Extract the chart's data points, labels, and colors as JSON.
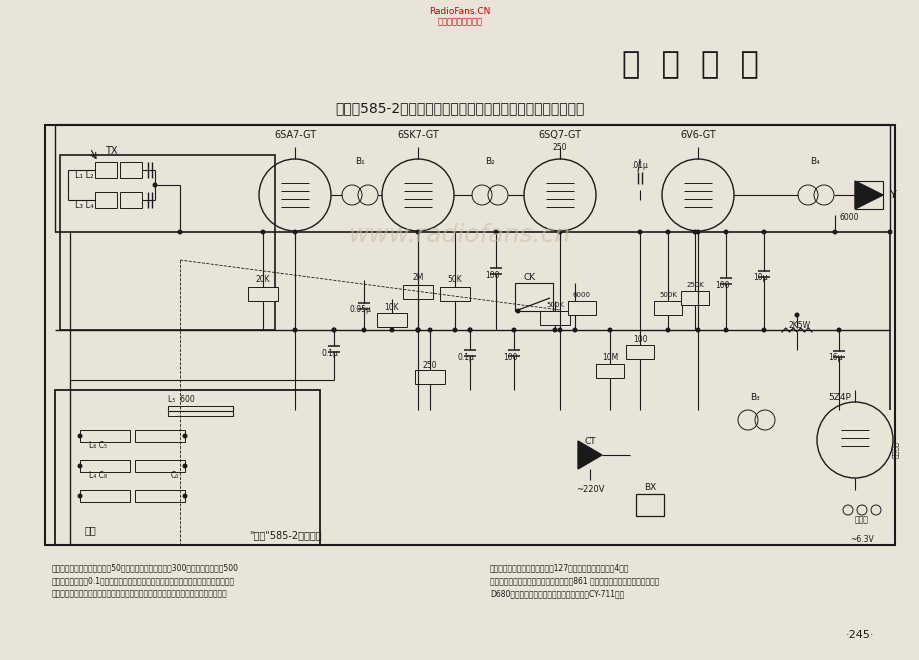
{
  "bg_color": "#e8e4d8",
  "title_main": "安  徽  产  品",
  "title_sub": "黄山牌585-2型交流五管二波段（原安徽合肥广播器材厂产品）",
  "watermark": "www.radiofans.cn",
  "site_top1": "RadioFans.CN",
  "site_top2": "收音机爱好者资料库",
  "tube_labels": [
    "6SA7-GT",
    "6SK7-GT",
    "6SQ7-GT",
    "6V6-GT"
  ],
  "page_num": "·245·",
  "sub_label": "\"黄山\"585-2甲五－二",
  "power_label": "双连",
  "tx_label": "TX",
  "ct_label": "CT",
  "ac_label": "~220V",
  "bx_label": "BX",
  "y_label": "Y",
  "ck_label": "CK",
  "tube5_label": "5Z4P",
  "note_line1": "【说明】本机电力消耗，小于50瓦，灵敏度：申波不低于300微伏，粗波不低于500",
  "note_line2": "微伏，细套不多于0.1倍；装备及使用说明，控制旋钮，左：电源开关及音量控制，中：",
  "note_line3": "电台选择，右：波段开关；拾音装置；机后有拾音器插口，插头置入后即可放唱片，此",
  "note_line4": "时放音电路自动切断；扬声器，127公逢永磁式，有限组抗4欧。",
  "note_line5": "左：安当合肥狐鳖无线电厂生产的豪竹牌861 型，范翔无鳖电二厂生产的长红牌",
  "note_line6": "D680型交流六管二超彼收音机电路联组间灯CY-711组。"
}
